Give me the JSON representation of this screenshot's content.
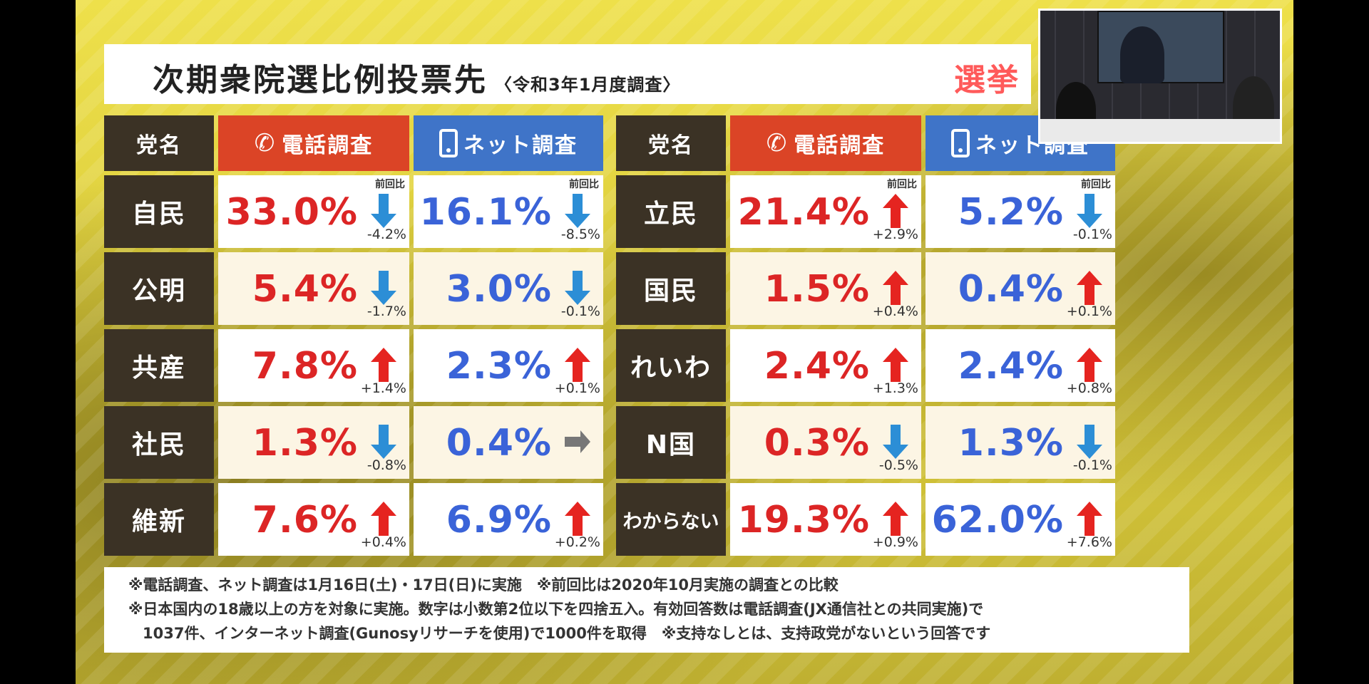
{
  "title": "次期衆院選比例投票先",
  "subtitle": "〈令和3年1月度調査〉",
  "brand_text": "選挙",
  "headers": {
    "party": "党名",
    "phone": "電話調査",
    "net": "ネット調査"
  },
  "prev_label": "前回比",
  "colors": {
    "party_bg": "#3b3225",
    "phone_header": "#db4426",
    "net_header": "#3f74c8",
    "up_arrow": "#e52420",
    "down_arrow": "#2c8ed6",
    "flat_arrow": "#777777"
  },
  "left_table": [
    {
      "party": "自民",
      "phone": {
        "value": "33.0%",
        "delta": "-4.2%",
        "dir": "down"
      },
      "net": {
        "value": "16.1%",
        "delta": "-8.5%",
        "dir": "down"
      }
    },
    {
      "party": "公明",
      "phone": {
        "value": "5.4%",
        "delta": "-1.7%",
        "dir": "down"
      },
      "net": {
        "value": "3.0%",
        "delta": "-0.1%",
        "dir": "down"
      }
    },
    {
      "party": "共産",
      "phone": {
        "value": "7.8%",
        "delta": "+1.4%",
        "dir": "up"
      },
      "net": {
        "value": "2.3%",
        "delta": "+0.1%",
        "dir": "up"
      }
    },
    {
      "party": "社民",
      "phone": {
        "value": "1.3%",
        "delta": "-0.8%",
        "dir": "down"
      },
      "net": {
        "value": "0.4%",
        "delta": "",
        "dir": "flat"
      }
    },
    {
      "party": "維新",
      "phone": {
        "value": "7.6%",
        "delta": "+0.4%",
        "dir": "up"
      },
      "net": {
        "value": "6.9%",
        "delta": "+0.2%",
        "dir": "up"
      }
    }
  ],
  "right_table": [
    {
      "party": "立民",
      "phone": {
        "value": "21.4%",
        "delta": "+2.9%",
        "dir": "up"
      },
      "net": {
        "value": "5.2%",
        "delta": "-0.1%",
        "dir": "down"
      }
    },
    {
      "party": "国民",
      "phone": {
        "value": "1.5%",
        "delta": "+0.4%",
        "dir": "up"
      },
      "net": {
        "value": "0.4%",
        "delta": "+0.1%",
        "dir": "up"
      }
    },
    {
      "party": "れいわ",
      "phone": {
        "value": "2.4%",
        "delta": "+1.3%",
        "dir": "up"
      },
      "net": {
        "value": "2.4%",
        "delta": "+0.8%",
        "dir": "up"
      }
    },
    {
      "party": "N国",
      "phone": {
        "value": "0.3%",
        "delta": "-0.5%",
        "dir": "down"
      },
      "net": {
        "value": "1.3%",
        "delta": "-0.1%",
        "dir": "down"
      }
    },
    {
      "party": "わからない",
      "phone": {
        "value": "19.3%",
        "delta": "+0.9%",
        "dir": "up"
      },
      "net": {
        "value": "62.0%",
        "delta": "+7.6%",
        "dir": "up"
      }
    }
  ],
  "notes": {
    "line1": "※電話調査、ネット調査は1月16日(土)・17日(日)に実施　※前回比は2020年10月実施の調査との比較",
    "line2": "※日本国内の18歳以上の方を対象に実施。数字は小数第2位以下を四捨五入。有効回答数は電話調査(JX通信社との共同実施)で",
    "line3": "1037件、インターネット調査(Gunosyリサーチを使用)で1000件を取得　※支持なしとは、支持政党がないという回答です"
  }
}
